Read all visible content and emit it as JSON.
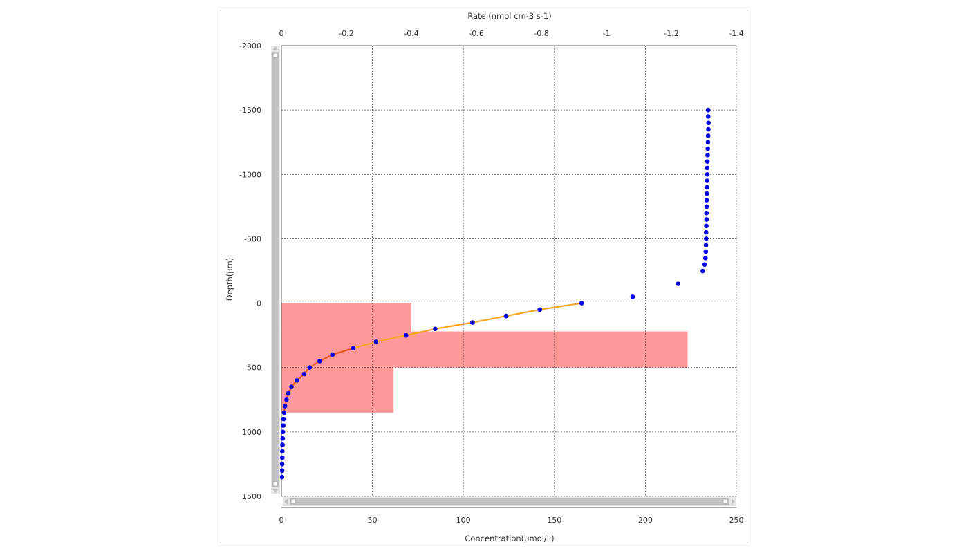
{
  "chart_data": {
    "type": "scatter",
    "title": "",
    "top_axis": {
      "label": "Rate (nmol cm-3 s-1)",
      "range": [
        0,
        -1.4
      ],
      "ticks": [
        "0",
        "-0.2",
        "-0.4",
        "-0.6",
        "-0.8",
        "-1",
        "-1.2",
        "-1.4"
      ],
      "tick_values": [
        0,
        -0.2,
        -0.4,
        -0.6,
        -0.8,
        -1.0,
        -1.2,
        -1.4
      ]
    },
    "x_axis": {
      "label": "Concentration(μmol/L)",
      "range": [
        0,
        250
      ],
      "ticks": [
        "0",
        "50",
        "100",
        "150",
        "200",
        "250"
      ],
      "tick_values": [
        0,
        50,
        100,
        150,
        200,
        250
      ]
    },
    "y_axis": {
      "label": "Depth(μm)",
      "range": [
        -2000,
        1500
      ],
      "ticks": [
        "-2000",
        "-1500",
        "-1000",
        "-500",
        "0",
        "500",
        "1000",
        "1500"
      ],
      "tick_values": [
        -2000,
        -1500,
        -1000,
        -500,
        0,
        500,
        1000,
        1500
      ]
    },
    "grid": true,
    "colors": {
      "points": "#0000e6",
      "fit_line": "#f5a623",
      "fit_line_lower": "#e8541e",
      "rate_bars": "#ff9393"
    },
    "series": [
      {
        "kind": "scatter",
        "x": [
          234.5,
          234.5,
          234.7,
          234.6,
          234.5,
          234.4,
          234.3,
          234.2,
          234.1,
          234.0,
          234.0,
          233.9,
          233.9,
          233.8,
          233.7,
          233.7,
          233.6,
          233.6,
          233.5,
          233.4,
          233.4,
          233.3,
          233.2,
          233.0,
          232.6,
          231.5,
          218.0,
          193.0,
          165.0,
          142.0,
          123.5,
          105.0,
          84.5,
          68.5,
          52.0,
          39.5,
          28.0,
          21.0,
          15.5,
          12.5,
          8.5,
          5.5,
          3.8,
          2.8,
          2.0,
          1.5,
          1.2,
          1.0,
          0.8,
          0.7,
          0.6,
          0.5,
          0.5,
          0.4,
          0.4,
          0.3
        ],
        "y": [
          -1500,
          -1450,
          -1400,
          -1350,
          -1300,
          -1250,
          -1200,
          -1150,
          -1100,
          -1050,
          -1000,
          -950,
          -900,
          -850,
          -800,
          -750,
          -700,
          -650,
          -600,
          -550,
          -500,
          -450,
          -400,
          -350,
          -300,
          -250,
          -150,
          -50,
          0,
          50,
          100,
          150,
          200,
          250,
          300,
          350,
          400,
          450,
          500,
          550,
          600,
          650,
          700,
          750,
          800,
          850,
          900,
          950,
          1000,
          1050,
          1100,
          1150,
          1200,
          1250,
          1300,
          1350
        ]
      },
      {
        "kind": "line",
        "x": [
          165.0,
          142.0,
          123.5,
          105.0,
          84.5,
          68.5,
          52.0,
          39.5,
          28.0,
          21.0,
          15.5,
          12.5,
          8.5,
          5.5,
          3.8,
          2.8,
          2.0,
          1.5
        ],
        "y": [
          0,
          50,
          100,
          150,
          200,
          250,
          300,
          350,
          400,
          450,
          500,
          550,
          600,
          650,
          700,
          750,
          800,
          850
        ]
      },
      {
        "kind": "rate_bars",
        "bars": [
          {
            "y_from": 0,
            "y_to": 220,
            "rate": -0.4
          },
          {
            "y_from": 220,
            "y_to": 500,
            "rate": -1.25
          },
          {
            "y_from": 500,
            "y_to": 850,
            "rate": -0.345
          }
        ]
      }
    ]
  }
}
